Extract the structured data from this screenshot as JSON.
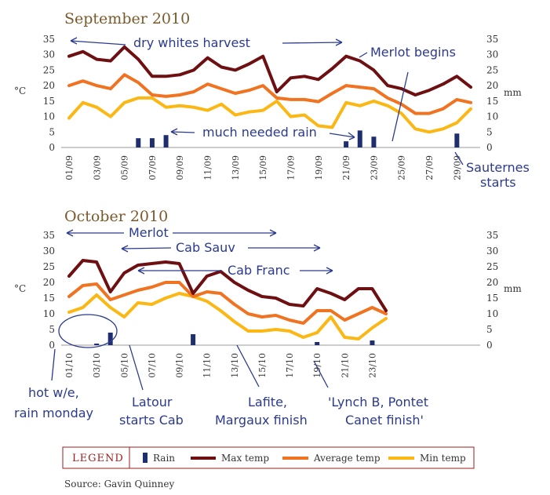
{
  "source": "Source: Gavin Quinney",
  "legend": {
    "title": "LEGEND",
    "rain": "Rain",
    "max": "Max temp",
    "avg": "Average temp",
    "min": "Min temp"
  },
  "colors": {
    "rain": "#1f2f6e",
    "max": "#6e0f12",
    "avg": "#f07322",
    "min": "#fbb714",
    "note": "#2b3a8f",
    "title": "#7a5a2c",
    "legend_border": "#9b1c1c"
  },
  "chart_data": [
    {
      "type": "line",
      "title": "September 2010",
      "ylabel_left": "°C",
      "ylabel_right": "mm",
      "ylim": [
        0,
        35
      ],
      "yticks": [
        0,
        5,
        10,
        15,
        20,
        25,
        30,
        35
      ],
      "categories": [
        "01/09",
        "02/09",
        "03/09",
        "04/09",
        "05/09",
        "06/09",
        "07/09",
        "08/09",
        "09/09",
        "10/09",
        "11/09",
        "12/09",
        "13/09",
        "14/09",
        "15/09",
        "16/09",
        "17/09",
        "18/09",
        "19/09",
        "20/09",
        "21/09",
        "22/09",
        "23/09",
        "24/09",
        "25/09",
        "26/09",
        "27/09",
        "28/09",
        "29/09",
        "30/09"
      ],
      "x_tick_labels": [
        "01/09",
        "03/09",
        "05/09",
        "07/09",
        "09/09",
        "11/09",
        "13/09",
        "15/09",
        "17/09",
        "19/09",
        "21/09",
        "23/09",
        "25/09",
        "27/09",
        "29/09"
      ],
      "series": [
        {
          "name": "Max temp",
          "values": [
            29.5,
            31,
            28.5,
            28,
            32.5,
            28.5,
            23,
            23,
            23.5,
            25,
            29,
            26,
            25,
            27,
            29.5,
            18,
            22.5,
            23,
            22,
            25.5,
            29.5,
            28,
            25,
            20,
            19,
            17,
            18.5,
            20.5,
            23,
            19.5
          ]
        },
        {
          "name": "Average temp",
          "values": [
            20,
            21.5,
            20,
            19,
            23.5,
            21,
            17,
            16.5,
            17,
            18,
            20.5,
            19,
            17.5,
            18.5,
            20,
            16,
            15.5,
            15.5,
            14.8,
            17.5,
            20,
            19.5,
            19,
            16,
            14,
            11,
            11,
            12.5,
            15.5,
            14.5
          ]
        },
        {
          "name": "Min temp",
          "values": [
            9.5,
            14.5,
            13,
            10,
            14.5,
            16,
            16,
            13,
            13.5,
            13,
            12,
            14,
            10.5,
            11.5,
            12,
            15,
            10,
            10.5,
            7,
            6.5,
            14.5,
            13.5,
            15,
            13.5,
            11,
            6,
            5,
            6,
            8,
            12.5
          ]
        },
        {
          "name": "Rain",
          "type": "bar",
          "values": [
            0,
            0,
            0,
            0,
            0,
            3,
            3,
            4,
            0,
            0,
            0,
            0,
            0,
            0,
            0,
            0,
            0,
            0,
            0,
            0,
            2,
            5.5,
            3.5,
            0,
            0,
            0,
            0,
            0,
            4.5,
            0
          ]
        }
      ],
      "annotations": [
        {
          "text": "dry whites harvest"
        },
        {
          "text": "Merlot begins"
        },
        {
          "text": "much needed rain"
        },
        {
          "text": "Sauternes"
        },
        {
          "text": "starts"
        }
      ]
    },
    {
      "type": "line",
      "title": "October 2010",
      "ylabel_left": "°C",
      "ylabel_right": "mm",
      "ylim": [
        0,
        35
      ],
      "yticks": [
        0,
        5,
        10,
        15,
        20,
        25,
        30,
        35
      ],
      "categories": [
        "01/10",
        "02/10",
        "03/10",
        "04/10",
        "05/10",
        "06/10",
        "07/10",
        "08/10",
        "09/10",
        "10/10",
        "11/10",
        "12/10",
        "13/10",
        "14/10",
        "15/10",
        "16/10",
        "17/10",
        "18/10",
        "19/10",
        "20/10",
        "21/10",
        "22/10",
        "23/10",
        "24/10"
      ],
      "x_tick_labels": [
        "01/10",
        "03/10",
        "05/10",
        "07/10",
        "09/10",
        "11/10",
        "13/10",
        "15/10",
        "17/10",
        "19/10",
        "21/10",
        "23/10"
      ],
      "series": [
        {
          "name": "Max temp",
          "values": [
            22,
            27,
            26.5,
            17,
            23,
            25.5,
            26,
            26.5,
            26,
            16.5,
            22,
            23.5,
            20,
            17.5,
            15.5,
            15,
            13,
            12.5,
            18,
            16.5,
            14.5,
            18,
            18,
            11
          ]
        },
        {
          "name": "Average temp",
          "values": [
            15.5,
            19,
            19.5,
            14.5,
            16,
            17.5,
            18.5,
            20,
            20,
            15.5,
            17,
            16.5,
            13,
            10,
            9,
            9.5,
            8,
            7,
            11,
            11,
            8,
            10,
            12,
            10
          ]
        },
        {
          "name": "Min temp",
          "values": [
            10.5,
            12,
            16,
            12,
            9,
            13.5,
            13,
            15,
            16.5,
            15.5,
            14,
            11,
            7.5,
            4.5,
            4.5,
            5,
            4.5,
            2.5,
            4,
            9,
            2.5,
            2,
            5.5,
            8.5
          ]
        },
        {
          "name": "Rain",
          "type": "bar",
          "values": [
            0,
            0,
            0.5,
            4,
            0,
            0,
            0,
            0,
            0,
            3.5,
            0,
            0,
            0,
            0,
            0,
            0,
            0,
            0,
            1,
            0,
            0,
            0,
            1.5,
            0
          ]
        }
      ],
      "annotations": [
        {
          "text": "Merlot"
        },
        {
          "text": "Cab Sauv"
        },
        {
          "text": "Cab Franc"
        },
        {
          "text": "hot w/e,"
        },
        {
          "text": "rain monday"
        },
        {
          "text": "Latour"
        },
        {
          "text": "starts Cab"
        },
        {
          "text": "Lafite,"
        },
        {
          "text": "Margaux finish"
        },
        {
          "text": "'Lynch B, Pontet"
        },
        {
          "text": "Canet finish'"
        }
      ]
    }
  ]
}
